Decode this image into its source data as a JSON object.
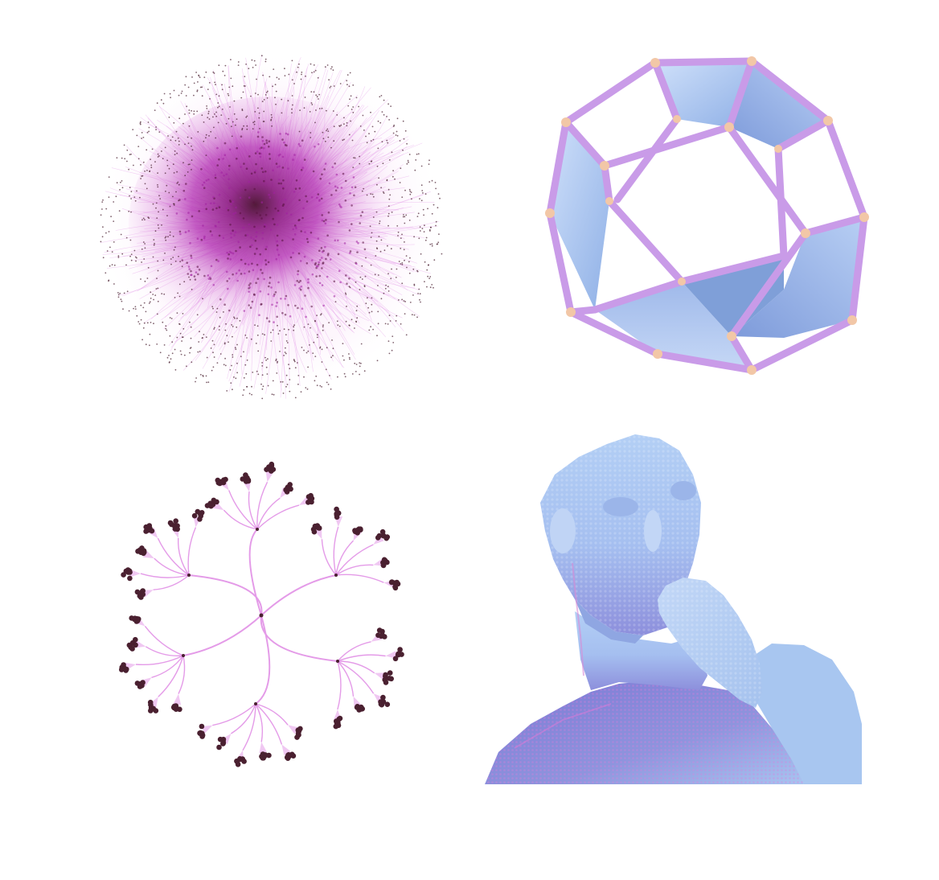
{
  "figure": {
    "panels": [
      {
        "id": "graph-network",
        "kind": "network-graph"
      },
      {
        "id": "dodecahedron",
        "kind": "polyhedron-mesh"
      },
      {
        "id": "tree",
        "kind": "hierarchical-tree"
      },
      {
        "id": "bust",
        "kind": "point-cloud-mesh"
      }
    ]
  },
  "colors": {
    "edge_pink": "#e49be8",
    "node_dark": "#4a2030",
    "core_magenta": "#a020a0",
    "core_dark": "#5a1040",
    "face_blue": "#a9c4ec",
    "face_blue_dark": "#7f9fd8",
    "strut_violet": "#c79ae6",
    "vertex_peach": "#f2c7a7",
    "bust_blue": "#a8c6f0",
    "bust_shadow": "#7f86d8",
    "bust_pink": "#d88ad6"
  }
}
